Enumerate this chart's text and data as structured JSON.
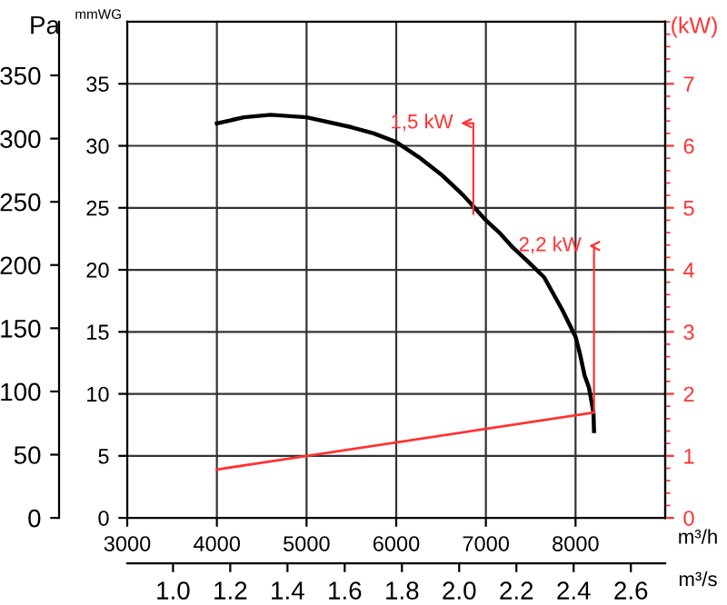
{
  "chart_data": {
    "type": "line",
    "xlabel": "m³/h",
    "x2label": "m³/s",
    "ylabel": "mmWG",
    "y2label": "Pa",
    "y3label": "(kW)",
    "xlim": [
      3000,
      9000
    ],
    "xticks": [
      3000,
      4000,
      5000,
      6000,
      7000,
      8000
    ],
    "x2lim": [
      0.84,
      2.72
    ],
    "x2ticks": [
      {
        "value": 1,
        "label": "1.0"
      },
      1.2,
      1.4,
      1.6,
      1.8,
      {
        "value": 2,
        "label": "2.0"
      },
      2.2,
      2.4,
      2.6
    ],
    "ylim": [
      0,
      40
    ],
    "yticks": [
      0,
      5,
      10,
      15,
      20,
      25,
      30,
      35
    ],
    "y2lim": [
      0,
      392.4
    ],
    "y2ticks": [
      0,
      50,
      100,
      150,
      200,
      250,
      300,
      350
    ],
    "y3lim": [
      0,
      8
    ],
    "y3ticks": [
      0,
      1,
      2,
      3,
      4,
      5,
      6,
      7
    ],
    "grid": true,
    "marker": "none",
    "line_style": "solid",
    "series": [
      {
        "color": "#000000",
        "x": [
          4000,
          4300,
          4600,
          5000,
          5500,
          5750,
          6000,
          6250,
          6500,
          6750,
          7000,
          7150,
          7300,
          7450,
          7650,
          7850,
          8000,
          8050,
          8100,
          8150,
          8200,
          8206
        ],
        "values": [
          31.8,
          32.3,
          32.5,
          32.3,
          31.5,
          31.0,
          30.3,
          29.1,
          27.7,
          26.0,
          24.0,
          23.0,
          21.8,
          20.8,
          19.4,
          16.8,
          14.6,
          13.2,
          11.5,
          10.5,
          8.5,
          7.0
        ]
      },
      {
        "color": "#ff3333",
        "axis": "y3",
        "x": [
          4000,
          8206
        ],
        "values": [
          0.78,
          1.7
        ]
      }
    ],
    "annotations": [
      {
        "text": "1,5 kW",
        "x": 6860,
        "y": 24.5
      },
      {
        "text": "2,2 kW",
        "x": 8206,
        "y": 8.5
      }
    ]
  }
}
